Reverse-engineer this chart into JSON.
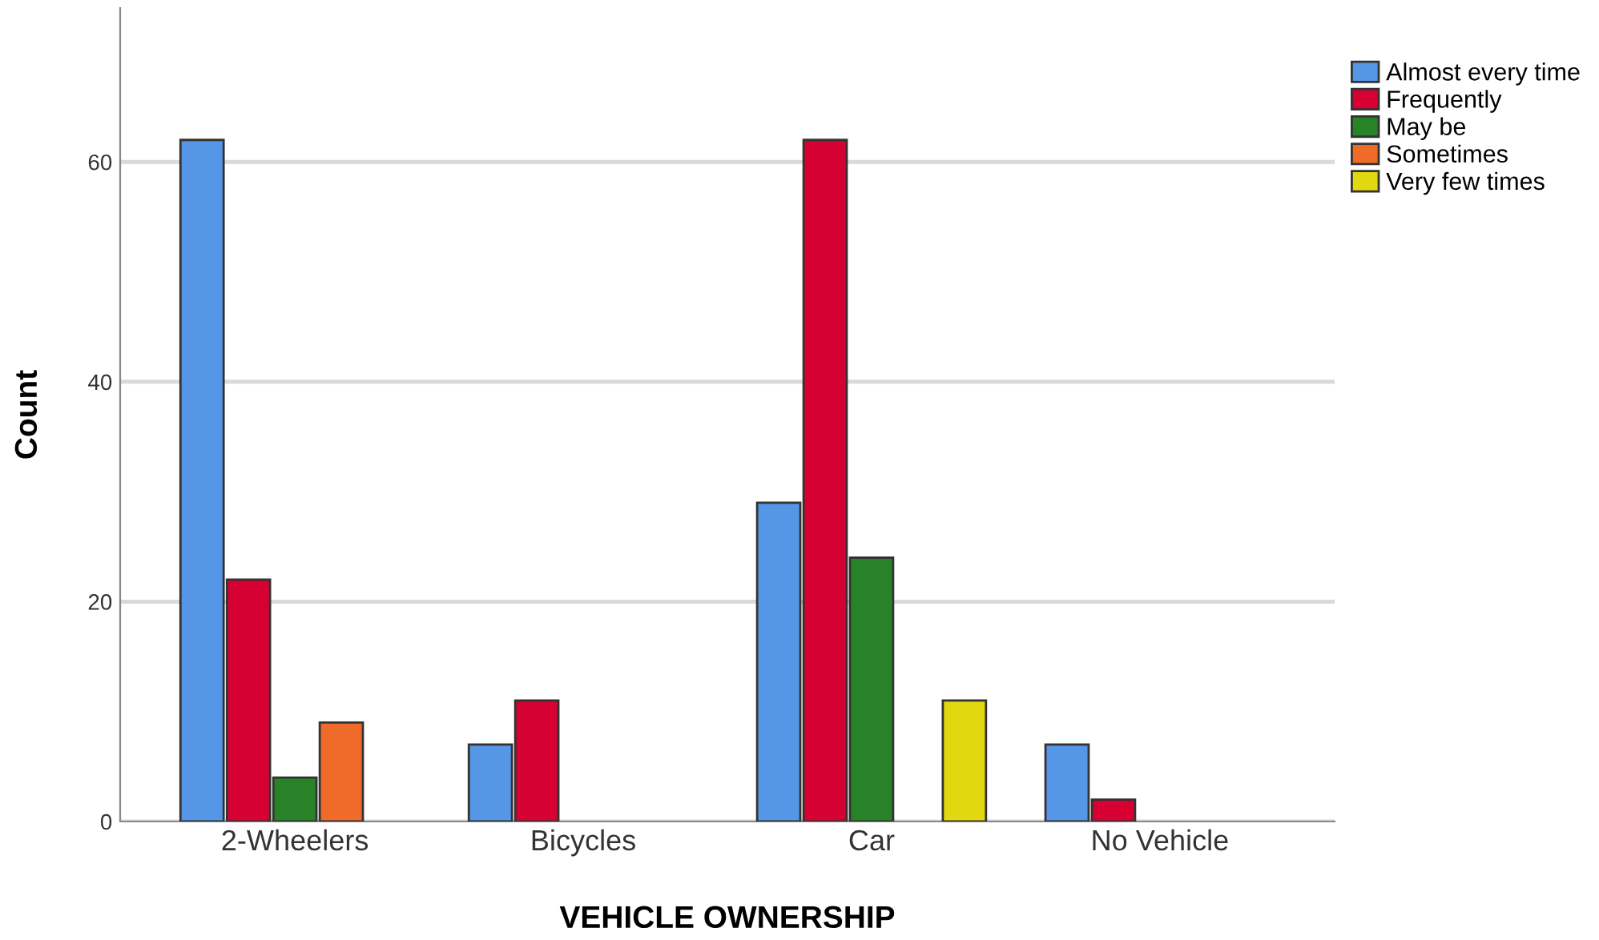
{
  "chart_data": {
    "type": "bar",
    "xlabel": "VEHICLE OWNERSHIP",
    "ylabel": "Count",
    "categories": [
      "2-Wheelers",
      "Bicycles",
      "Car",
      "No Vehicle"
    ],
    "series": [
      {
        "name": "Almost every time",
        "color": "#5596e6",
        "values": [
          62,
          7,
          29,
          7
        ]
      },
      {
        "name": "Frequently",
        "color": "#d70032",
        "values": [
          22,
          11,
          62,
          2
        ]
      },
      {
        "name": "May be",
        "color": "#288228",
        "values": [
          4,
          null,
          24,
          null
        ]
      },
      {
        "name": "Sometimes",
        "color": "#f06a2a",
        "values": [
          9,
          null,
          null,
          null
        ]
      },
      {
        "name": "Very few times",
        "color": "#e2d80f",
        "values": [
          null,
          null,
          11,
          null
        ]
      }
    ],
    "ylim": [
      0,
      74
    ],
    "yticks": [
      0,
      20,
      40,
      60
    ],
    "grid": "y",
    "legend": "top right"
  }
}
